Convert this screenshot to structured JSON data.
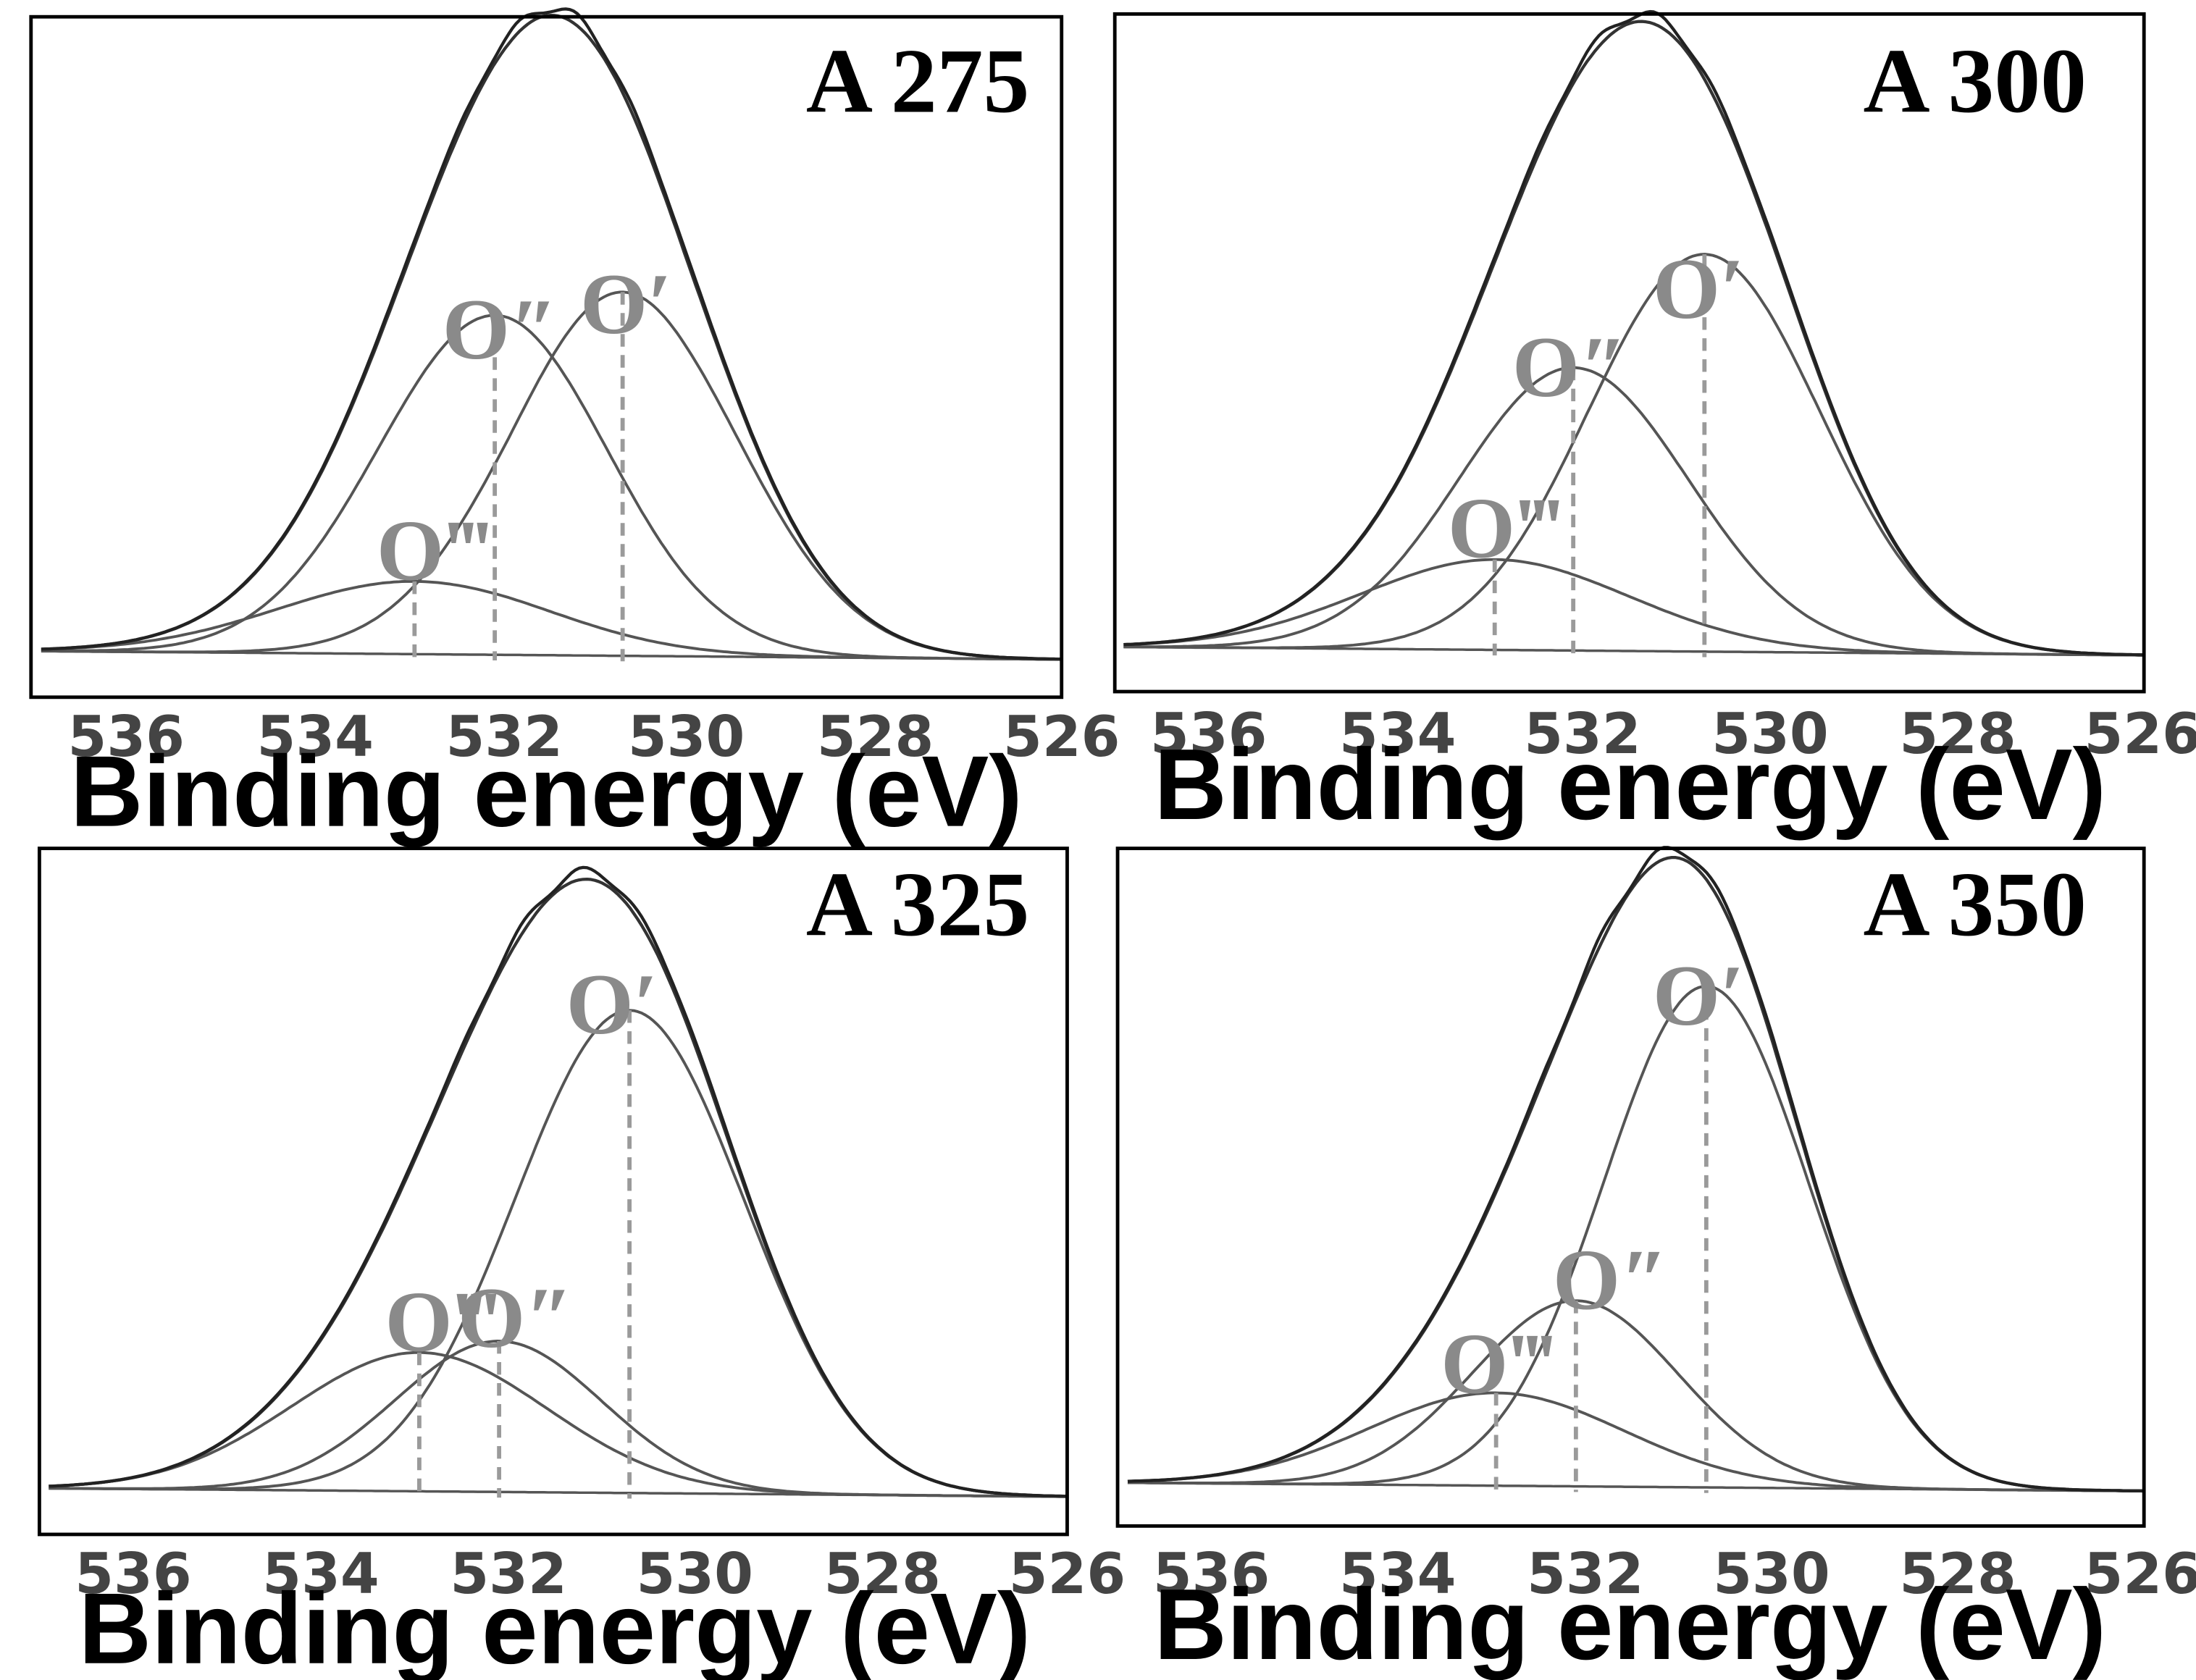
{
  "chart_data": [
    {
      "type": "line",
      "title": "A 275",
      "xlabel": "Binding energy (eV)",
      "ylabel": "",
      "xlim": [
        536.9,
        526
      ],
      "ylim": [
        0,
        1
      ],
      "x_ticks": [
        536,
        534,
        532,
        530,
        528,
        526
      ],
      "x_tick_labels": [
        "536",
        "534",
        "532",
        "530",
        "528",
        "526"
      ],
      "components": [
        {
          "name": "O′",
          "center": 530.7,
          "height": 0.6,
          "fwhm": 2.9
        },
        {
          "name": "O″",
          "center": 532.1,
          "height": 0.56,
          "fwhm": 2.9
        },
        {
          "name": "O‴",
          "center": 532.95,
          "height": 0.12,
          "fwhm": 3.4
        }
      ],
      "annotations": [
        "O″",
        "O′",
        "O‴"
      ]
    },
    {
      "type": "line",
      "title": "A 300",
      "xlabel": "Binding energy (eV)",
      "ylabel": "",
      "xlim": [
        536.9,
        526
      ],
      "ylim": [
        0,
        1
      ],
      "x_ticks": [
        536,
        534,
        532,
        530,
        528,
        526
      ],
      "x_tick_labels": [
        "536",
        "534",
        "532",
        "530",
        "528",
        "526"
      ],
      "components": [
        {
          "name": "O′",
          "center": 530.7,
          "height": 0.66,
          "fwhm": 2.9
        },
        {
          "name": "O″",
          "center": 532.1,
          "height": 0.47,
          "fwhm": 2.9
        },
        {
          "name": "O‴",
          "center": 532.95,
          "height": 0.15,
          "fwhm": 3.4
        }
      ],
      "annotations": [
        "O′",
        "O″",
        "O‴"
      ]
    },
    {
      "type": "line",
      "title": "A 325",
      "xlabel": "Binding energy (eV)",
      "ylabel": "",
      "xlim": [
        536.9,
        526
      ],
      "ylim": [
        0,
        1
      ],
      "x_ticks": [
        536,
        534,
        532,
        530,
        528,
        526
      ],
      "x_tick_labels": [
        "536",
        "534",
        "532",
        "530",
        "528",
        "526"
      ],
      "components": [
        {
          "name": "O′",
          "center": 530.7,
          "height": 0.8,
          "fwhm": 2.9
        },
        {
          "name": "O″",
          "center": 532.1,
          "height": 0.25,
          "fwhm": 2.6
        },
        {
          "name": "O‴",
          "center": 532.95,
          "height": 0.23,
          "fwhm": 3.2
        }
      ],
      "annotations": [
        "O′",
        "O‴",
        "O″"
      ]
    },
    {
      "type": "line",
      "title": "A 350",
      "xlabel": "Binding energy (eV)",
      "ylabel": "",
      "xlim": [
        536.9,
        526
      ],
      "ylim": [
        0,
        1
      ],
      "x_ticks": [
        536,
        534,
        532,
        530,
        528,
        526
      ],
      "x_tick_labels": [
        "536",
        "534",
        "532",
        "530",
        "528",
        "526"
      ],
      "components": [
        {
          "name": "O′",
          "center": 530.7,
          "height": 0.81,
          "fwhm": 2.6
        },
        {
          "name": "O″",
          "center": 532.1,
          "height": 0.3,
          "fwhm": 2.6
        },
        {
          "name": "O‴",
          "center": 532.95,
          "height": 0.15,
          "fwhm": 3.2
        }
      ],
      "annotations": [
        "O′",
        "O″",
        "O‴"
      ]
    }
  ]
}
